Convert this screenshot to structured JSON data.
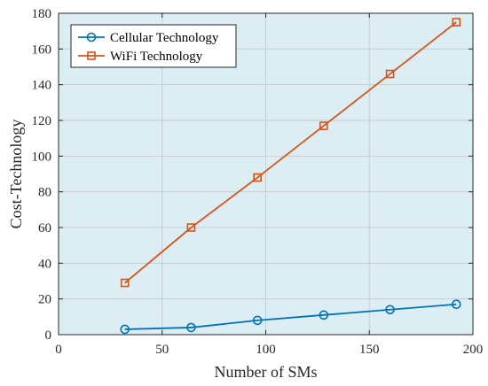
{
  "chart_data": {
    "type": "line",
    "title": "",
    "xlabel": "Number of SMs",
    "ylabel": "Cost-Technology",
    "xlim": [
      0,
      200
    ],
    "ylim": [
      0,
      180
    ],
    "xticks": [
      0,
      50,
      100,
      150,
      200
    ],
    "yticks": [
      0,
      20,
      40,
      60,
      80,
      100,
      120,
      140,
      160,
      180
    ],
    "grid": true,
    "legend_position": "top-left",
    "background_color": "#dcedf4",
    "x": [
      32,
      64,
      96,
      128,
      160,
      192
    ],
    "series": [
      {
        "name": "Cellular Technology",
        "marker": "circle",
        "color": "#0072BD",
        "values": [
          3,
          4,
          8,
          11,
          14,
          17
        ]
      },
      {
        "name": "WiFi Technology",
        "marker": "square",
        "color": "#D95319",
        "values": [
          29,
          60,
          88,
          117,
          146,
          175
        ]
      }
    ]
  }
}
